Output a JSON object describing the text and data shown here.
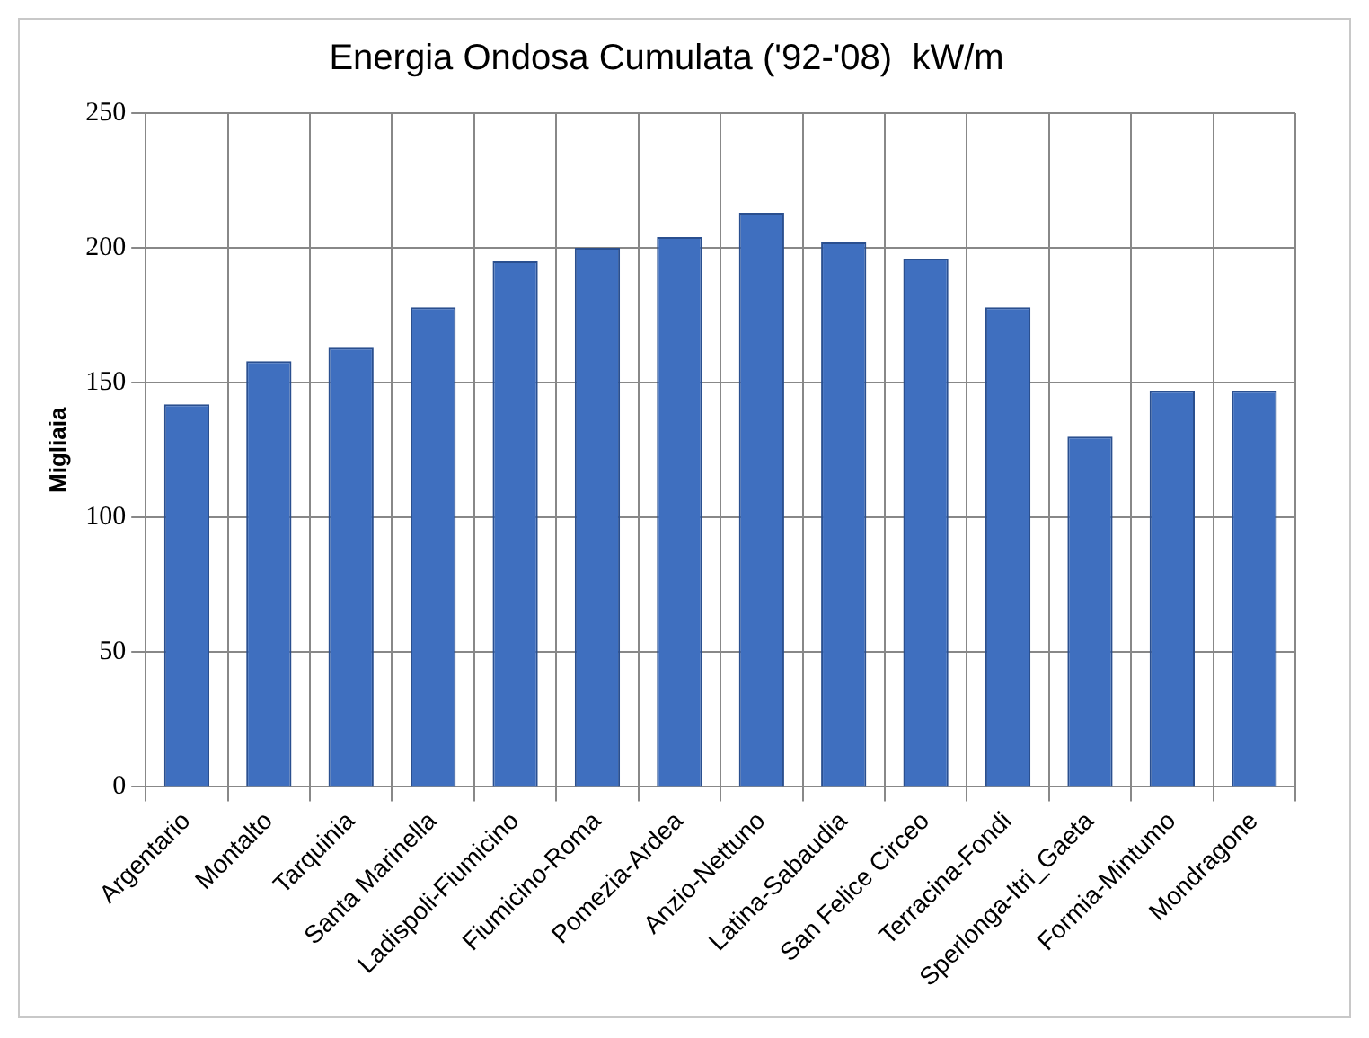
{
  "chart_data": {
    "type": "bar",
    "title": "Energia Ondosa Cumulata ('92-'08)  kW/m",
    "ylabel": "Migliaia",
    "categories": [
      "Argentario",
      "Montalto",
      "Tarquinia",
      "Santa Marinella",
      "Ladispoli-Fiumicino",
      "Fiumicino-Roma",
      "Pomezia-Ardea",
      "Anzio-Nettuno",
      "Latina-Sabaudia",
      "San Felice Circeo",
      "Terracina-Fondi",
      "Sperlonga-Itri_Gaeta",
      "Formia-Mintumo",
      "Mondragone"
    ],
    "values": [
      142,
      158,
      163,
      178,
      195,
      200,
      204,
      213,
      202,
      196,
      178,
      130,
      147,
      147
    ],
    "color": "#3f6fbf",
    "ylim": [
      0,
      250
    ],
    "yticks": [
      0,
      50,
      100,
      150,
      200,
      250
    ],
    "grid": true
  }
}
